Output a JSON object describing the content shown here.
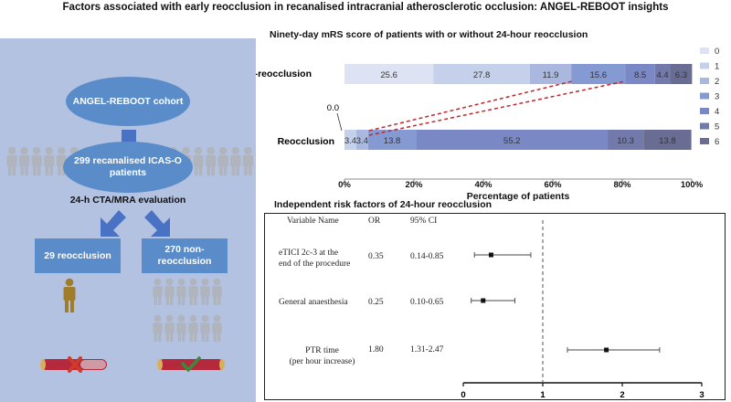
{
  "title": "Factors associated with early reocclusion in recanalised intracranial atherosclerotic occlusion: ANGEL-REBOOT insights",
  "flow": {
    "cohort": "ANGEL-REBOOT cohort",
    "patients": "299 recanalised ICAS-O patients",
    "evaluation": "24-h CTA/MRA evaluation",
    "reocclusion": "29 reocclusion",
    "non_reocclusion": "270 non-reocclusion"
  },
  "colors": {
    "panel": "#b3c2e0",
    "node": "#5a8cc9",
    "arrow": "#4a72c4",
    "person_gray": "#b0b4bc",
    "person_gold": "#a07d2a",
    "vessel": "#b5293d",
    "red_x": "#d13a2a",
    "check": "#3b8a3b"
  },
  "chart_data": [
    {
      "type": "bar",
      "subtype": "stacked-100-horizontal",
      "title": "Ninety-day mRS score of patients with or without 24-hour reocclusion",
      "xlabel": "Percentage of patients",
      "ylabel": "",
      "xlim": [
        0,
        100
      ],
      "xticks": [
        "0%",
        "20%",
        "40%",
        "60%",
        "80%",
        "100%"
      ],
      "categories": [
        "Non-reocclusion",
        "Reocclusion"
      ],
      "legend_position": "right",
      "series": [
        {
          "name": "0",
          "color": "#dde3f2",
          "values": [
            25.6,
            0.0
          ]
        },
        {
          "name": "1",
          "color": "#c5d0ea",
          "values": [
            27.8,
            3.4
          ]
        },
        {
          "name": "2",
          "color": "#aab8e0",
          "values": [
            11.9,
            3.4
          ]
        },
        {
          "name": "3",
          "color": "#8599d3",
          "values": [
            15.6,
            13.8
          ]
        },
        {
          "name": "4",
          "color": "#7a88c6",
          "values": [
            8.5,
            55.2
          ]
        },
        {
          "name": "5",
          "color": "#7279ab",
          "values": [
            4.4,
            10.3
          ]
        },
        {
          "name": "6",
          "color": "#6a6d93",
          "values": [
            6.3,
            13.8
          ]
        }
      ],
      "segment_labels": {
        "Non-reocclusion": [
          "25.6",
          "27.8",
          "11.9",
          "15.6",
          "8.5",
          "4.4",
          "6.3"
        ],
        "Reocclusion": [
          "3.4",
          "3.4",
          "13.8",
          "55.2",
          "10.3",
          "13.8"
        ]
      },
      "zero_annotation": "0.0"
    },
    {
      "type": "forest",
      "title": "Independent risk factors of 24-hour reocclusion",
      "headers": {
        "name": "Variable Name",
        "or": "OR",
        "ci": "95% CI"
      },
      "xlim": [
        0,
        3
      ],
      "xticks": [
        "0",
        "1",
        "2",
        "3"
      ],
      "reference": 1,
      "rows": [
        {
          "name_lines": [
            "eTICI 2c-3 at the",
            "end of the procedure"
          ],
          "or_label": "0.35",
          "ci_label": "0.14-0.85",
          "or": 0.35,
          "low": 0.14,
          "high": 0.85
        },
        {
          "name_lines": [
            "General anaesthesia"
          ],
          "or_label": "0.25",
          "ci_label": "0.10-0.65",
          "or": 0.25,
          "low": 0.1,
          "high": 0.65
        },
        {
          "name_lines": [
            "PTR time",
            "(per hour increase)"
          ],
          "or_label": "1.80",
          "ci_label": "1.31-2.47",
          "or": 1.8,
          "low": 1.31,
          "high": 2.47
        }
      ]
    }
  ]
}
